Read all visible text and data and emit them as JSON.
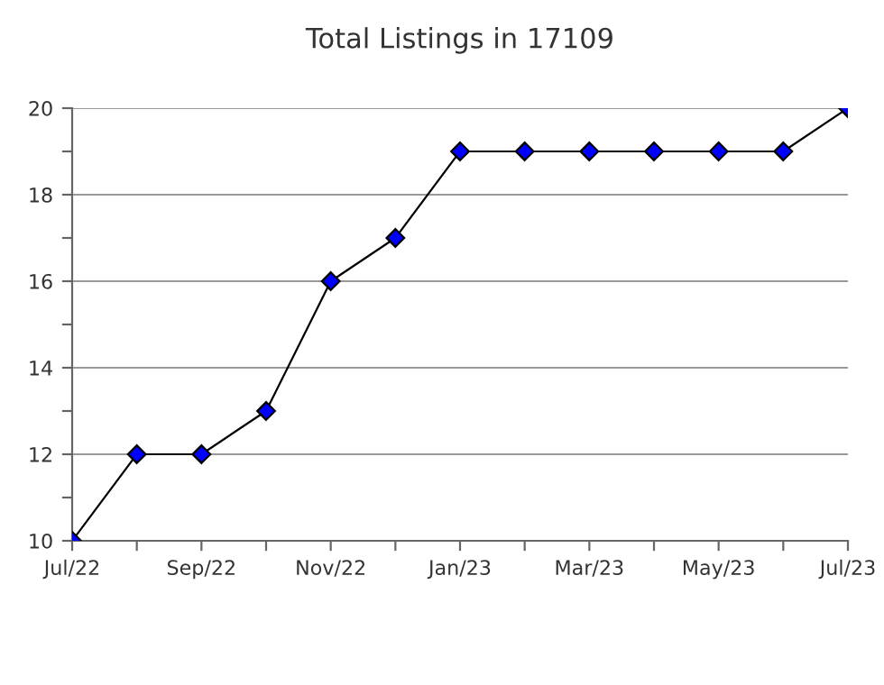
{
  "chart_data": {
    "type": "line",
    "title": "Total Listings in 17109",
    "categories": [
      "Jul/22",
      null,
      "Sep/22",
      null,
      "Nov/22",
      null,
      "Jan/23",
      null,
      "Mar/23",
      null,
      "May/23",
      null,
      "Jul/23"
    ],
    "series": [
      {
        "color": "#0000ff",
        "values": [
          10,
          12,
          12,
          13,
          16,
          17,
          19,
          19,
          19,
          19,
          19,
          19,
          20
        ]
      }
    ],
    "ylim": [
      10,
      20
    ],
    "yticks": [
      10,
      {
        "value": 11,
        "label": null
      },
      12,
      {
        "value": 13,
        "label": null
      },
      14,
      {
        "value": 15,
        "label": null
      },
      16,
      {
        "value": 17,
        "label": null
      },
      18,
      {
        "value": 19,
        "label": null
      },
      20
    ],
    "grid": "y",
    "marker": "diamond",
    "line_style": "solid",
    "legend": false
  }
}
